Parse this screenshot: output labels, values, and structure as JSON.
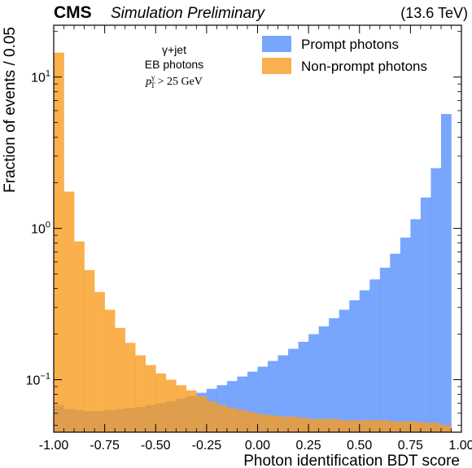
{
  "header": {
    "experiment": "CMS",
    "status": "Simulation Preliminary",
    "energy": "(13.6 TeV)"
  },
  "annotation": {
    "process": "γ+jet",
    "region": "EB photons",
    "cut_label": "p",
    "cut_sup": "γ",
    "cut_sub": "T",
    "cut_value": "> 25 GeV"
  },
  "chart_data": {
    "type": "bar",
    "title": "",
    "xlabel": "Photon identification BDT score",
    "ylabel": "Fraction of events / 0.05",
    "xlim": [
      -1.0,
      1.0
    ],
    "ylim": [
      0.045,
      22
    ],
    "yscale": "log",
    "grid": false,
    "legend_position": "top-right",
    "x_ticks": [
      "-1.00",
      "-0.75",
      "-0.50",
      "-0.25",
      "0.00",
      "0.25",
      "0.50",
      "0.75",
      "1.00"
    ],
    "y_ticks": [
      {
        "value": 0.1,
        "base": "10",
        "exp": "−1"
      },
      {
        "value": 1,
        "base": "10",
        "exp": "0"
      },
      {
        "value": 10,
        "base": "10",
        "exp": "1"
      }
    ],
    "bin_edges": [
      -1.0,
      -0.95,
      -0.9,
      -0.85,
      -0.8,
      -0.75,
      -0.7,
      -0.65,
      -0.6,
      -0.55,
      -0.5,
      -0.45,
      -0.4,
      -0.35,
      -0.3,
      -0.25,
      -0.2,
      -0.15,
      -0.1,
      -0.05,
      0.0,
      0.05,
      0.1,
      0.15,
      0.2,
      0.25,
      0.3,
      0.35,
      0.4,
      0.45,
      0.5,
      0.55,
      0.6,
      0.65,
      0.7,
      0.75,
      0.8,
      0.85,
      0.9,
      0.95,
      1.0
    ],
    "series": [
      {
        "name": "Prompt photons",
        "color": "#5790fc",
        "opacity": 0.8,
        "values": [
          0.068,
          0.064,
          0.063,
          0.062,
          0.062,
          0.063,
          0.064,
          0.065,
          0.066,
          0.068,
          0.07,
          0.072,
          0.075,
          0.078,
          0.082,
          0.087,
          0.092,
          0.098,
          0.105,
          0.113,
          0.122,
          0.133,
          0.145,
          0.16,
          0.178,
          0.2,
          0.225,
          0.255,
          0.29,
          0.335,
          0.39,
          0.46,
          0.55,
          0.68,
          0.87,
          1.15,
          1.6,
          2.5,
          5.7,
          0.045
        ]
      },
      {
        "name": "Non-prompt photons",
        "color": "#f89c20",
        "opacity": 0.8,
        "values": [
          14.5,
          1.75,
          0.82,
          0.53,
          0.38,
          0.29,
          0.22,
          0.175,
          0.145,
          0.125,
          0.11,
          0.1,
          0.092,
          0.085,
          0.078,
          0.072,
          0.068,
          0.065,
          0.063,
          0.061,
          0.059,
          0.058,
          0.057,
          0.057,
          0.056,
          0.055,
          0.055,
          0.055,
          0.054,
          0.054,
          0.054,
          0.054,
          0.054,
          0.053,
          0.053,
          0.053,
          0.052,
          0.052,
          0.05,
          0.044
        ]
      }
    ]
  }
}
